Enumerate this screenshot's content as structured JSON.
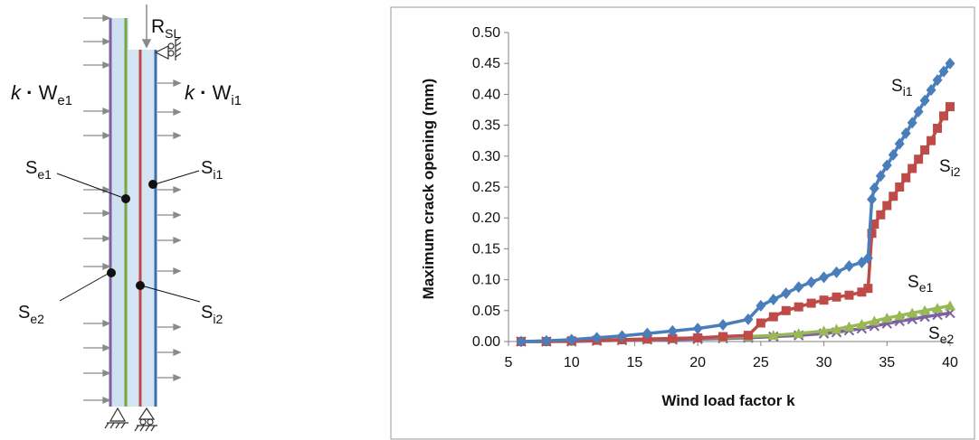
{
  "diagram": {
    "reaction_label": {
      "main": "R",
      "sub": "SL"
    },
    "load_left": {
      "factor": "k",
      "dot": "·",
      "main": "W",
      "sub": "e1"
    },
    "load_right": {
      "factor": "k",
      "dot": "·",
      "main": "W",
      "sub": "i1"
    },
    "points": [
      {
        "main": "S",
        "sub": "e1"
      },
      {
        "main": "S",
        "sub": "i1"
      },
      {
        "main": "S",
        "sub": "e2"
      },
      {
        "main": "S",
        "sub": "i2"
      }
    ]
  },
  "chart_data": {
    "type": "line",
    "xlabel": "Wind load factor k",
    "ylabel": "Maximum crack opening (mm)",
    "xlim": [
      5,
      40
    ],
    "ylim": [
      0,
      0.5
    ],
    "x_ticks": [
      "5",
      "10",
      "15",
      "20",
      "25",
      "30",
      "35",
      "40"
    ],
    "y_ticks": [
      "0.00",
      "0.05",
      "0.10",
      "0.15",
      "0.20",
      "0.25",
      "0.30",
      "0.35",
      "0.40",
      "0.45",
      "0.50"
    ],
    "grid": false,
    "series": [
      {
        "name": "Si1",
        "label_main": "S",
        "label_sub": "i1",
        "color": "#4a7ebb",
        "marker": "diamond",
        "x": [
          6,
          8,
          10,
          12,
          14,
          16,
          18,
          20,
          22,
          24,
          25,
          26,
          27,
          28,
          29,
          30,
          31,
          32,
          33,
          33.5,
          33.8,
          34,
          34.5,
          35,
          35.5,
          36,
          36.5,
          37,
          37.5,
          38,
          38.5,
          39,
          39.5,
          40
        ],
        "y": [
          0,
          0.001,
          0.003,
          0.006,
          0.009,
          0.013,
          0.017,
          0.021,
          0.027,
          0.036,
          0.058,
          0.068,
          0.078,
          0.088,
          0.096,
          0.104,
          0.112,
          0.122,
          0.128,
          0.135,
          0.23,
          0.248,
          0.268,
          0.285,
          0.302,
          0.32,
          0.337,
          0.354,
          0.372,
          0.39,
          0.407,
          0.423,
          0.437,
          0.45
        ]
      },
      {
        "name": "Si2",
        "label_main": "S",
        "label_sub": "i2",
        "color": "#be4b48",
        "marker": "square",
        "x": [
          6,
          8,
          10,
          12,
          14,
          16,
          18,
          20,
          22,
          24,
          25,
          26,
          27,
          28,
          29,
          30,
          31,
          32,
          33,
          33.5,
          33.8,
          34,
          34.5,
          35,
          35.5,
          36,
          36.5,
          37,
          37.5,
          38,
          38.5,
          39,
          39.5,
          40
        ],
        "y": [
          0,
          0,
          0.001,
          0.002,
          0.003,
          0.004,
          0.005,
          0.006,
          0.008,
          0.01,
          0.03,
          0.04,
          0.05,
          0.056,
          0.062,
          0.067,
          0.072,
          0.075,
          0.08,
          0.086,
          0.175,
          0.19,
          0.205,
          0.22,
          0.235,
          0.25,
          0.265,
          0.28,
          0.295,
          0.31,
          0.325,
          0.345,
          0.365,
          0.38
        ]
      },
      {
        "name": "Se1",
        "label_main": "S",
        "label_sub": "e1",
        "color": "#98b954",
        "marker": "triangle",
        "x": [
          6,
          8,
          10,
          12,
          14,
          16,
          18,
          20,
          22,
          24,
          26,
          28,
          30,
          31,
          32,
          33,
          34,
          35,
          36,
          37,
          38,
          39,
          40
        ],
        "y": [
          0,
          0,
          0.001,
          0.002,
          0.003,
          0.004,
          0.005,
          0.006,
          0.007,
          0.008,
          0.01,
          0.013,
          0.017,
          0.02,
          0.024,
          0.028,
          0.033,
          0.038,
          0.042,
          0.046,
          0.05,
          0.054,
          0.058
        ]
      },
      {
        "name": "Se2",
        "label_main": "S",
        "label_sub": "e2",
        "color": "#7d60a0",
        "marker": "cross",
        "x": [
          6,
          8,
          10,
          12,
          14,
          16,
          18,
          20,
          22,
          24,
          26,
          28,
          30,
          31,
          32,
          33,
          34,
          35,
          36,
          37,
          38,
          39,
          40
        ],
        "y": [
          0,
          0,
          0,
          0.001,
          0.002,
          0.003,
          0.003,
          0.004,
          0.005,
          0.006,
          0.008,
          0.01,
          0.013,
          0.015,
          0.018,
          0.021,
          0.025,
          0.029,
          0.033,
          0.036,
          0.04,
          0.043,
          0.046
        ]
      }
    ]
  }
}
